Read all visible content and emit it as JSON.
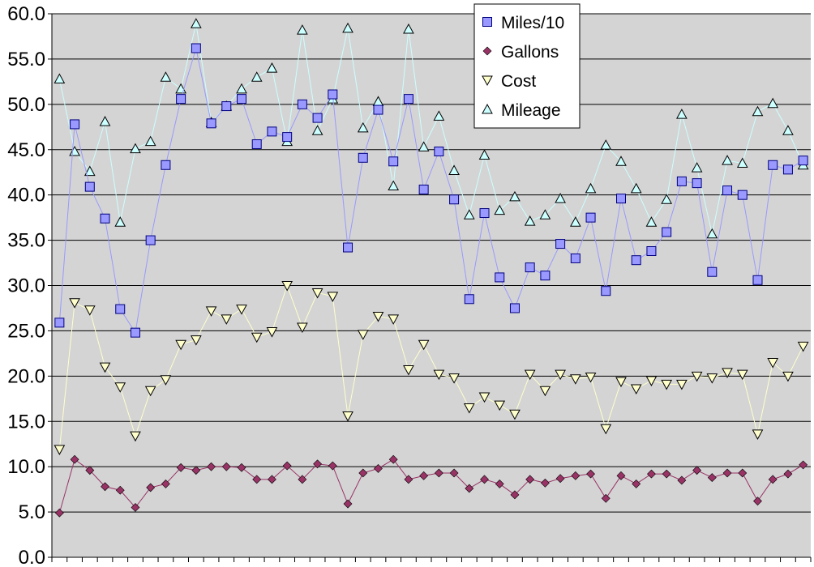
{
  "chart_data": {
    "type": "line",
    "title": "",
    "xlabel": "",
    "ylabel": "",
    "ylim": [
      0,
      60
    ],
    "ytick_step": 5,
    "ytick_labels": [
      "0.0",
      "5.0",
      "10.0",
      "15.0",
      "20.0",
      "25.0",
      "30.0",
      "35.0",
      "40.0",
      "45.0",
      "50.0",
      "55.0",
      "60.0"
    ],
    "x_count": 50,
    "grid": true,
    "plot_background": "#d4d4d4",
    "legend_position": "top-right",
    "series": [
      {
        "name": "Miles/10",
        "marker": "square",
        "marker_color": "#9999ff",
        "line_color": "#9999ff",
        "values": [
          25.9,
          47.8,
          40.9,
          37.4,
          27.4,
          24.8,
          35.0,
          43.3,
          50.6,
          56.2,
          47.9,
          49.8,
          50.6,
          45.6,
          47.0,
          46.4,
          50.0,
          48.5,
          51.1,
          34.2,
          44.1,
          49.4,
          43.7,
          50.6,
          40.6,
          44.8,
          39.5,
          28.5,
          38.0,
          30.9,
          27.5,
          32.0,
          31.1,
          34.6,
          33.0,
          37.5,
          29.4,
          39.6,
          32.8,
          33.8,
          35.9,
          41.5,
          41.3,
          31.5,
          40.5,
          40.0,
          30.6,
          43.3,
          42.8,
          43.8
        ]
      },
      {
        "name": "Gallons",
        "marker": "diamond",
        "marker_color": "#993366",
        "line_color": "#993366",
        "values": [
          4.9,
          10.8,
          9.6,
          7.8,
          7.4,
          5.5,
          7.7,
          8.1,
          9.9,
          9.6,
          10.0,
          10.0,
          9.9,
          8.6,
          8.6,
          10.1,
          8.6,
          10.3,
          10.1,
          5.9,
          9.3,
          9.8,
          10.8,
          8.6,
          9.0,
          9.3,
          9.3,
          7.6,
          8.6,
          8.1,
          6.9,
          8.6,
          8.2,
          8.7,
          9.0,
          9.2,
          6.5,
          9.0,
          8.1,
          9.2,
          9.2,
          8.5,
          9.6,
          8.8,
          9.3,
          9.3,
          6.2,
          8.6,
          9.2,
          10.2
        ]
      },
      {
        "name": "Cost",
        "marker": "triangle-down",
        "marker_color": "#ffffcc",
        "line_color": "#ffffcc",
        "values": [
          11.9,
          28.1,
          27.3,
          21.0,
          18.8,
          13.4,
          18.4,
          19.6,
          23.5,
          24.0,
          27.2,
          26.3,
          27.4,
          24.3,
          24.9,
          30.0,
          25.4,
          29.2,
          28.8,
          15.6,
          24.6,
          26.6,
          26.3,
          20.7,
          23.5,
          20.2,
          19.8,
          16.5,
          17.7,
          16.8,
          15.8,
          20.2,
          18.4,
          20.2,
          19.7,
          19.9,
          14.2,
          19.4,
          18.6,
          19.5,
          19.1,
          19.1,
          20.0,
          19.8,
          20.4,
          20.2,
          13.6,
          21.5,
          20.0,
          23.3
        ]
      },
      {
        "name": "Mileage",
        "marker": "triangle-up",
        "marker_color": "#ccffff",
        "line_color": "#ccffff",
        "values": [
          52.8,
          44.8,
          42.6,
          48.1,
          37.0,
          45.1,
          45.9,
          53.0,
          51.7,
          58.9,
          48.0,
          49.8,
          51.7,
          53.0,
          54.0,
          45.9,
          58.2,
          47.1,
          50.6,
          58.4,
          47.4,
          50.3,
          41.0,
          58.3,
          45.3,
          48.7,
          42.7,
          37.8,
          44.4,
          38.3,
          39.8,
          37.1,
          37.8,
          39.6,
          37.0,
          40.7,
          45.5,
          43.7,
          40.7,
          37.0,
          39.5,
          48.9,
          43.0,
          35.7,
          43.8,
          43.5,
          49.2,
          50.1,
          47.1,
          43.3
        ]
      }
    ]
  }
}
